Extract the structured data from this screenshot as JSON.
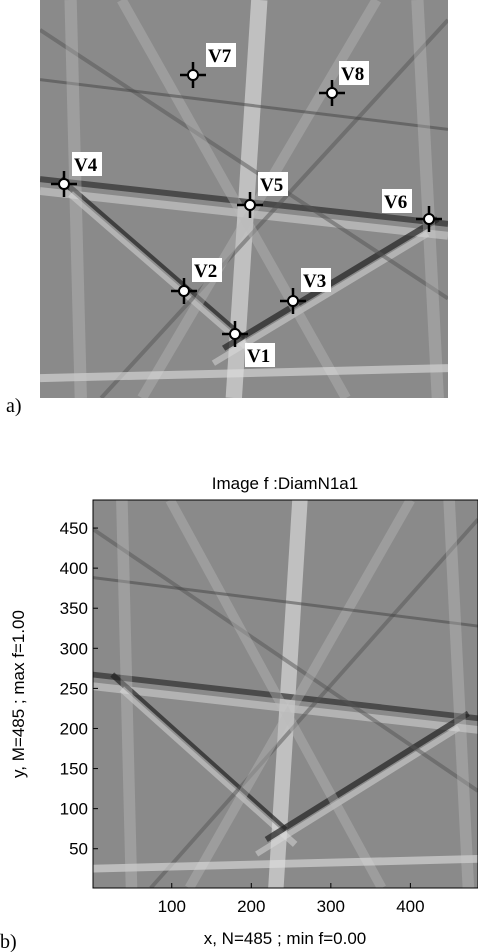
{
  "panel_a": {
    "label": "a)",
    "points": [
      "V1",
      "V2",
      "V3",
      "V4",
      "V5",
      "V6",
      "V7",
      "V8"
    ]
  },
  "panel_b": {
    "label": "b)",
    "title": "Image f :DiamN1a1",
    "x_label": "x, N=485 ; min f=0.00",
    "y_label": "y, M=485 ; max f=1.00",
    "xlim": [
      1,
      485
    ],
    "ylim": [
      1,
      485
    ],
    "xticks": [
      100,
      200,
      300,
      400
    ],
    "yticks": [
      50,
      100,
      150,
      200,
      250,
      300,
      350,
      400,
      450
    ]
  }
}
